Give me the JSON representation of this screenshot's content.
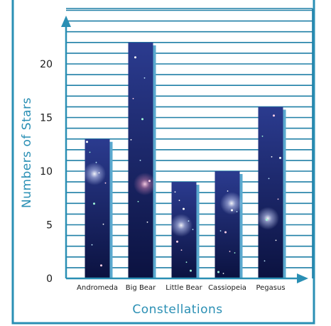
{
  "chart_data": {
    "type": "bar",
    "categories": [
      "Andromeda",
      "Big Bear",
      "Little Bear",
      "Cassiopeia",
      "Pegasus"
    ],
    "values": [
      13,
      22,
      9,
      10,
      16
    ],
    "xlabel": "Constellations",
    "ylabel": "Numbers of Stars",
    "ylim": [
      0,
      25
    ],
    "yticks": [
      0,
      5,
      10,
      15,
      20
    ],
    "grid": true,
    "colors": {
      "frame": "#2a8fb4",
      "grid": "#1f7fa6",
      "axis": "#2a8fb4",
      "bar_fill_top": "#2b3b8f",
      "bar_fill_bottom": "#0b1240",
      "bar_shadow": "#5aa9cf",
      "axis_title": "#2a8fb4"
    }
  }
}
